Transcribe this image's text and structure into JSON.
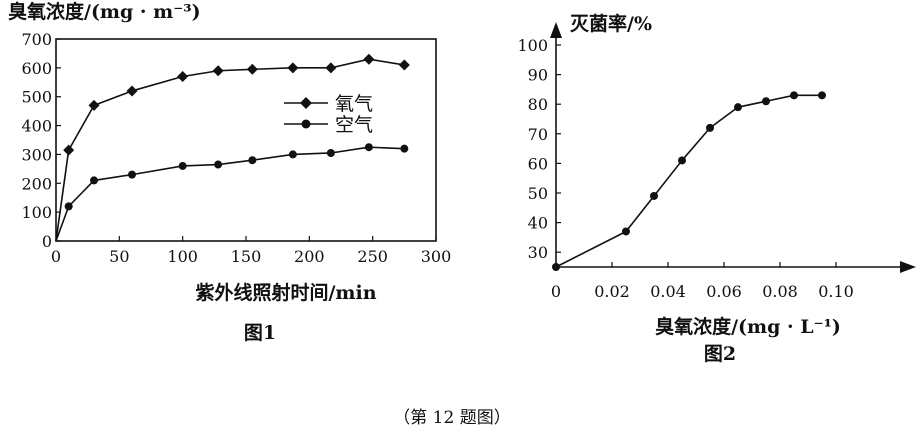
{
  "chart_data": [
    {
      "type": "line",
      "title": "",
      "ylabel": "臭氧浓度/(mg · m⁻³)",
      "xlabel": "紫外线照射时间/min",
      "caption": "图1",
      "xlim": [
        0,
        300
      ],
      "ylim": [
        0,
        700
      ],
      "xticks": [
        "0",
        "50",
        "100",
        "150",
        "200",
        "250",
        "300"
      ],
      "yticks": [
        "0",
        "100",
        "200",
        "300",
        "400",
        "500",
        "600",
        "700"
      ],
      "legend_position": "right",
      "series": [
        {
          "name": "氧气",
          "marker": "diamond",
          "x": [
            0,
            10,
            30,
            60,
            100,
            128,
            155,
            187,
            217,
            247,
            275
          ],
          "y": [
            0,
            315,
            470,
            520,
            570,
            590,
            595,
            600,
            600,
            630,
            610
          ]
        },
        {
          "name": "空气",
          "marker": "circle",
          "x": [
            0,
            10,
            30,
            60,
            100,
            128,
            155,
            187,
            217,
            247,
            275
          ],
          "y": [
            0,
            120,
            210,
            230,
            260,
            265,
            280,
            300,
            305,
            325,
            320
          ]
        }
      ]
    },
    {
      "type": "line",
      "title": "",
      "ylabel": "灭菌率/%",
      "xlabel": "臭氧浓度/(mg · L⁻¹)",
      "caption": "图2",
      "xlim": [
        0,
        0.1
      ],
      "ylim": [
        25,
        100
      ],
      "xticks": [
        "0",
        "0.02",
        "0.04",
        "0.06",
        "0.08",
        "0.10"
      ],
      "yticks": [
        "30",
        "40",
        "50",
        "60",
        "70",
        "80",
        "90",
        "100"
      ],
      "series": [
        {
          "marker": "circle",
          "x": [
            0,
            0.025,
            0.035,
            0.045,
            0.055,
            0.065,
            0.075,
            0.085,
            0.095
          ],
          "y": [
            25,
            37,
            49,
            61,
            72,
            79,
            81,
            83,
            83
          ]
        }
      ]
    }
  ],
  "figure_caption": "（第 12 题图）"
}
